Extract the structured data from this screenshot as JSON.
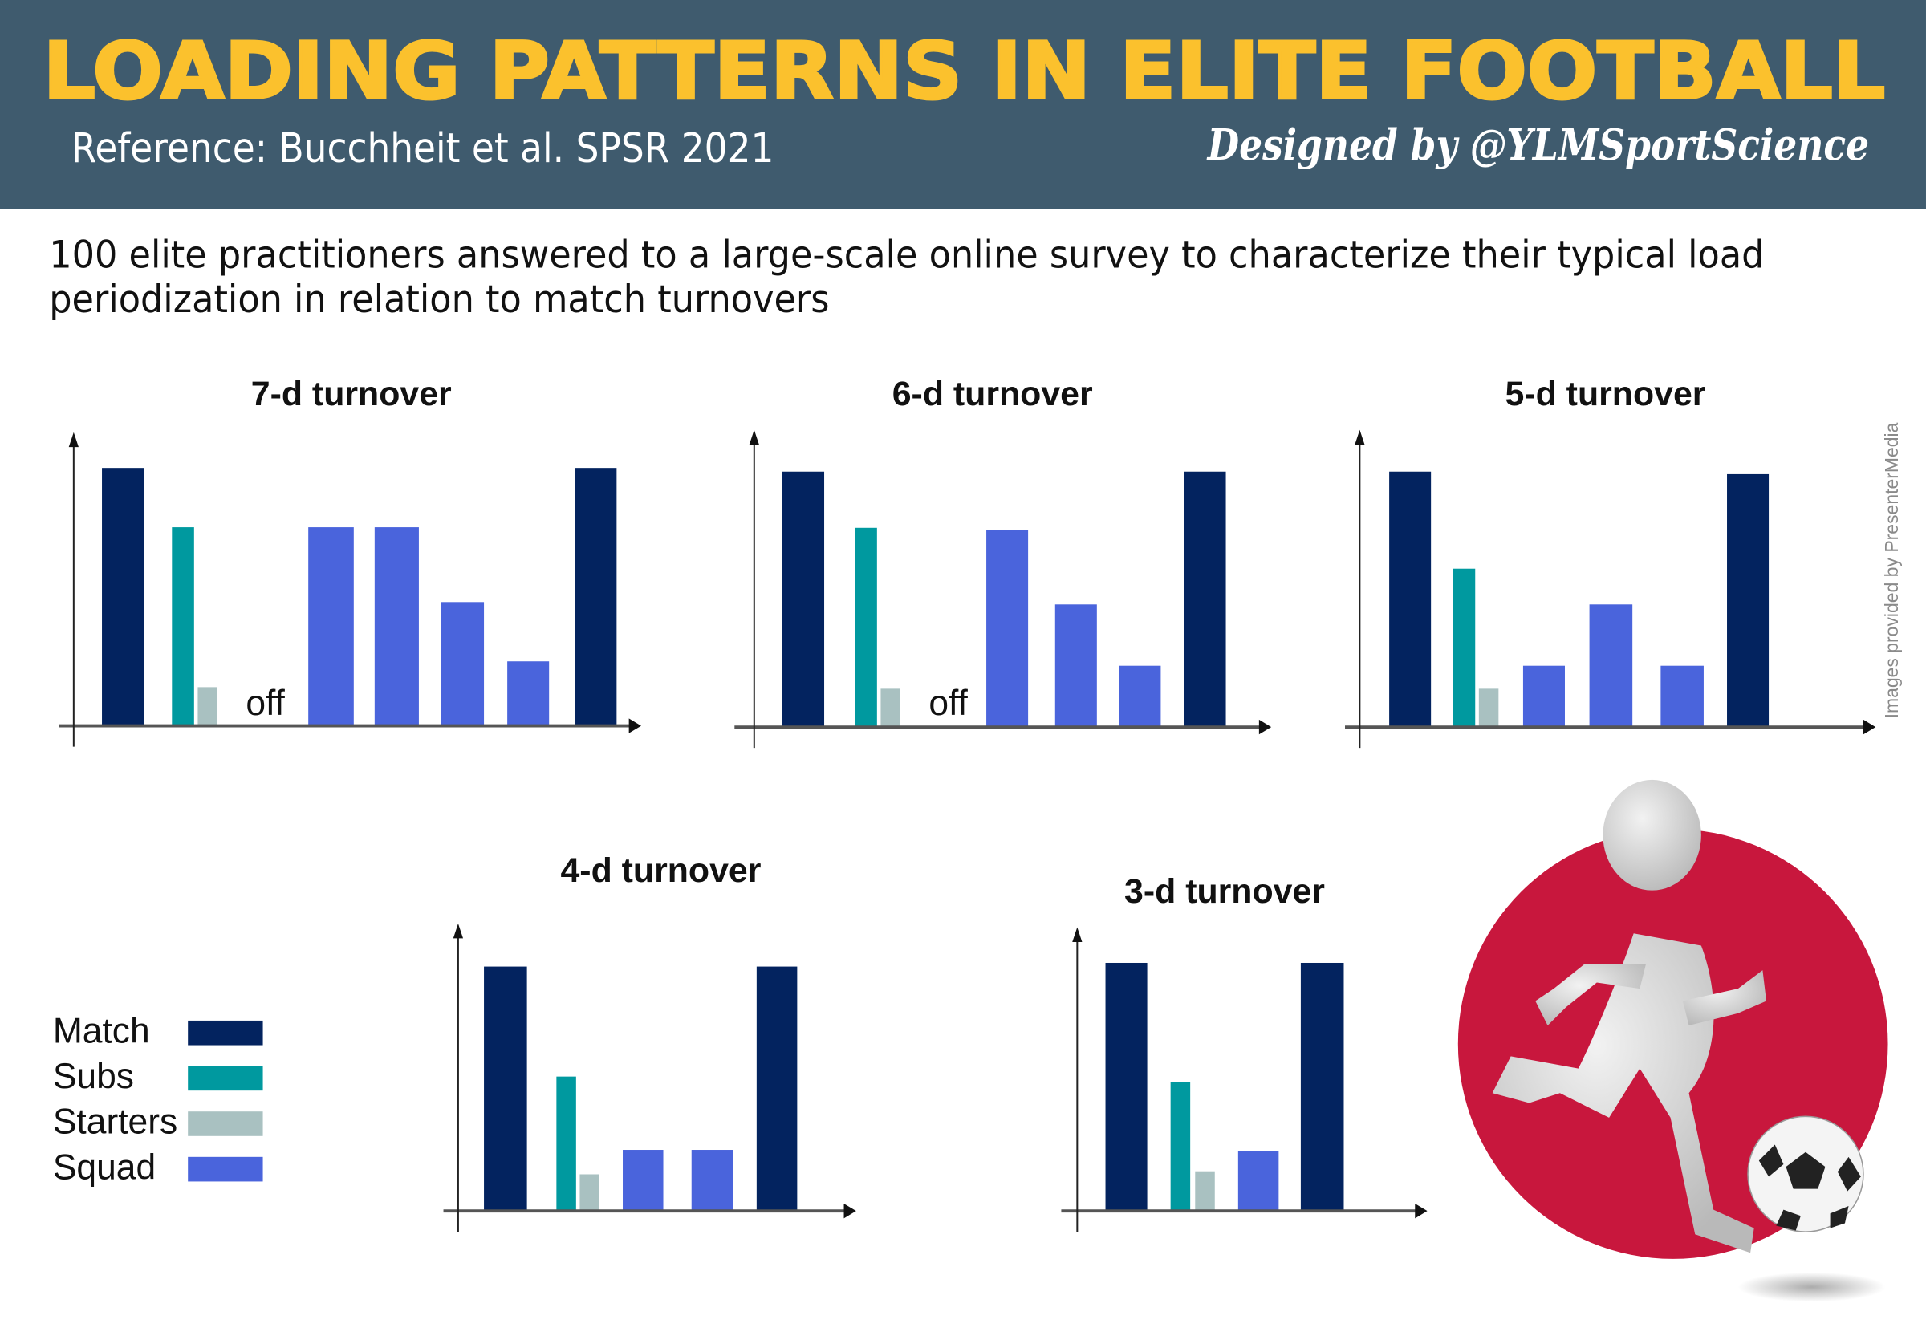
{
  "header": {
    "title": "LOADING PATTERNS IN ELITE FOOTBALL",
    "reference": "Reference: Bucchheit et al. SPSR 2021",
    "designed_by": "Designed by @YLMSportScience"
  },
  "intro": "100 elite practitioners answered to a large-scale online survey to characterize their typical load periodization in relation to match turnovers",
  "watermark": "Images provided by PresenterMedia",
  "colors": {
    "header_bg": "#3f5b6e",
    "title": "#fbc12d",
    "Match": "#03235f",
    "Subs": "#00999f",
    "Starters": "#a9c1c1",
    "Squad": "#4a64dc",
    "circle": "#c8173d"
  },
  "legend": [
    {
      "label": "Match",
      "key": "Match"
    },
    {
      "label": "Subs",
      "key": "Subs"
    },
    {
      "label": "Starters",
      "key": "Starters"
    },
    {
      "label": "Squad",
      "key": "Squad"
    }
  ],
  "chart_data": [
    {
      "type": "bar",
      "title": "7-d turnover",
      "off_label": "off",
      "ylim": [
        0,
        100
      ],
      "grid": false,
      "bars": [
        {
          "series": "Match",
          "value": 100
        },
        {
          "series": "Subs",
          "value": 77
        },
        {
          "series": "Starters",
          "value": 15
        },
        {
          "series": "Squad",
          "value": 77
        },
        {
          "series": "Squad",
          "value": 77
        },
        {
          "series": "Squad",
          "value": 48
        },
        {
          "series": "Squad",
          "value": 25
        },
        {
          "series": "Match",
          "value": 100
        }
      ]
    },
    {
      "type": "bar",
      "title": "6-d turnover",
      "off_label": "off",
      "ylim": [
        0,
        100
      ],
      "grid": false,
      "bars": [
        {
          "series": "Match",
          "value": 100
        },
        {
          "series": "Subs",
          "value": 78
        },
        {
          "series": "Starters",
          "value": 15
        },
        {
          "series": "Squad",
          "value": 77
        },
        {
          "series": "Squad",
          "value": 48
        },
        {
          "series": "Squad",
          "value": 24
        },
        {
          "series": "Match",
          "value": 100
        }
      ]
    },
    {
      "type": "bar",
      "title": "5-d turnover",
      "ylim": [
        0,
        100
      ],
      "grid": false,
      "bars": [
        {
          "series": "Match",
          "value": 100
        },
        {
          "series": "Subs",
          "value": 62
        },
        {
          "series": "Starters",
          "value": 15
        },
        {
          "series": "Squad",
          "value": 24
        },
        {
          "series": "Squad",
          "value": 48
        },
        {
          "series": "Squad",
          "value": 24
        },
        {
          "series": "Match",
          "value": 99
        }
      ]
    },
    {
      "type": "bar",
      "title": "4-d turnover",
      "ylim": [
        0,
        100
      ],
      "grid": false,
      "bars": [
        {
          "series": "Match",
          "value": 100
        },
        {
          "series": "Subs",
          "value": 55
        },
        {
          "series": "Starters",
          "value": 15
        },
        {
          "series": "Squad",
          "value": 25
        },
        {
          "series": "Squad",
          "value": 25
        },
        {
          "series": "Match",
          "value": 100
        }
      ]
    },
    {
      "type": "bar",
      "title": "3-d turnover",
      "ylim": [
        0,
        100
      ],
      "grid": false,
      "bars": [
        {
          "series": "Match",
          "value": 100
        },
        {
          "series": "Subs",
          "value": 52
        },
        {
          "series": "Starters",
          "value": 16
        },
        {
          "series": "Squad",
          "value": 24
        },
        {
          "series": "Match",
          "value": 100
        }
      ]
    }
  ]
}
